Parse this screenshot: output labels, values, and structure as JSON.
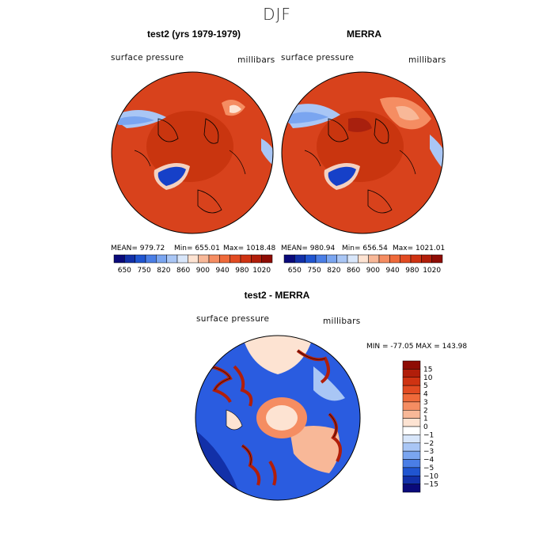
{
  "title": "DJF",
  "panels": {
    "left": {
      "title": "test2 (yrs 1979-1979)",
      "variable": "surface pressure",
      "units": "millibars",
      "mean_label": "MEAN= 979.72",
      "min_label": "Min= 655.01",
      "max_label": "Max= 1018.48"
    },
    "right": {
      "title": "MERRA",
      "variable": "surface pressure",
      "units": "millibars",
      "mean_label": "MEAN= 980.94",
      "min_label": "Min= 656.54",
      "max_label": "Max= 1021.01"
    },
    "diff": {
      "title": "test2 - MERRA",
      "variable": "surface pressure",
      "units": "millibars",
      "minmax_label": "MIN = -77.05 MAX = 143.98"
    }
  },
  "colorbar_abs": {
    "ticks": [
      "650",
      "750",
      "820",
      "860",
      "900",
      "940",
      "980",
      "1020"
    ],
    "colors": [
      "#0a0a7a",
      "#1230a8",
      "#2055d0",
      "#4a7ee6",
      "#7aa5f0",
      "#a9c6f5",
      "#d8e6fa",
      "#fde3d2",
      "#f8b898",
      "#f58d62",
      "#ef6a3a",
      "#e24b22",
      "#cf3312",
      "#b11e0a",
      "#8e0c04"
    ]
  },
  "colorbar_diff": {
    "labels": [
      "15",
      "10",
      "5",
      "4",
      "3",
      "2",
      "1",
      "0",
      "−1",
      "−2",
      "−3",
      "−4",
      "−5",
      "−10",
      "−15"
    ],
    "colors": [
      "#8e0c04",
      "#b11e0a",
      "#cf3312",
      "#e24b22",
      "#ef6a3a",
      "#f58d62",
      "#f8b898",
      "#fde3d2",
      "#ffffff",
      "#d8e6fa",
      "#a9c6f5",
      "#7aa5f0",
      "#4a7ee6",
      "#2055d0",
      "#1230a8",
      "#0a0a7a"
    ]
  }
}
